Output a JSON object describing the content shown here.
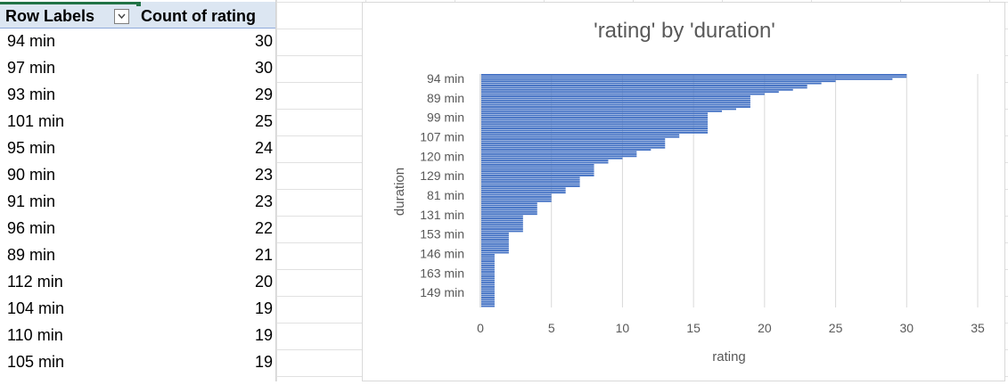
{
  "pivot": {
    "headers": {
      "row_labels": "Row Labels",
      "count": "Count of rating"
    },
    "rows": [
      {
        "label": "94 min",
        "value": "30"
      },
      {
        "label": "97 min",
        "value": "30"
      },
      {
        "label": "93 min",
        "value": "29"
      },
      {
        "label": "101 min",
        "value": "25"
      },
      {
        "label": "95 min",
        "value": "24"
      },
      {
        "label": "90 min",
        "value": "23"
      },
      {
        "label": "91 min",
        "value": "23"
      },
      {
        "label": "96 min",
        "value": "22"
      },
      {
        "label": "89 min",
        "value": "21"
      },
      {
        "label": "112 min",
        "value": "20"
      },
      {
        "label": "104 min",
        "value": "19"
      },
      {
        "label": "110 min",
        "value": "19"
      },
      {
        "label": "105 min",
        "value": "19"
      }
    ]
  },
  "chart_data": {
    "type": "bar",
    "orientation": "horizontal",
    "title": "'rating' by 'duration'",
    "xlabel": "rating",
    "ylabel": "duration",
    "xlim": [
      0,
      35
    ],
    "xticks": [
      0,
      5,
      10,
      15,
      20,
      25,
      30,
      35
    ],
    "grid": true,
    "bar_color": "#4472c4",
    "categories_labeled": [
      "94 min",
      "89 min",
      "99 min",
      "107 min",
      "120 min",
      "129 min",
      "81 min",
      "131 min",
      "153 min",
      "146 min",
      "163 min",
      "149 min"
    ],
    "values": [
      30,
      30,
      29,
      25,
      24,
      23,
      23,
      22,
      21,
      20,
      19,
      19,
      19,
      19,
      19,
      19,
      18,
      17,
      16,
      16,
      16,
      16,
      16,
      16,
      16,
      16,
      16,
      16,
      14,
      14,
      13,
      13,
      13,
      13,
      13,
      12,
      11,
      11,
      11,
      10,
      9,
      9,
      8,
      8,
      8,
      8,
      8,
      8,
      7,
      7,
      7,
      7,
      7,
      6,
      6,
      6,
      5,
      5,
      5,
      5,
      4,
      4,
      4,
      4,
      4,
      4,
      3,
      3,
      3,
      3,
      3,
      3,
      3,
      3,
      2,
      2,
      2,
      2,
      2,
      2,
      2,
      2,
      2,
      2,
      1,
      1,
      1,
      1,
      1,
      1,
      1,
      1,
      1,
      1,
      1,
      1,
      1,
      1,
      1,
      1,
      1,
      1,
      1,
      1,
      1,
      1,
      1,
      1,
      1
    ]
  }
}
